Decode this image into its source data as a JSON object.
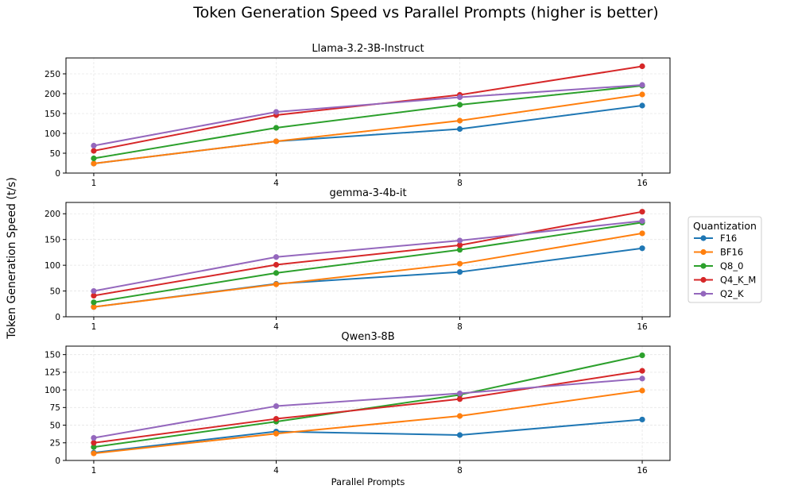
{
  "figure": {
    "title": "Token Generation Speed vs Parallel Prompts (higher is better)",
    "ylabel": "Token Generation Speed (t/s)"
  },
  "legend": {
    "title": "Quantization",
    "placement": "right"
  },
  "colors": {
    "F16": "#1f77b4",
    "BF16": "#ff7f0e",
    "Q8_0": "#2ca02c",
    "Q4_K_M": "#d62728",
    "Q2_K": "#9467bd"
  },
  "chart_data": [
    {
      "type": "line",
      "title": "Llama-3.2-3B-Instruct",
      "xlabel": "",
      "categories": [
        "1",
        "4",
        "8",
        "16"
      ],
      "ylim": [
        0,
        290
      ],
      "yticks": [
        0,
        50,
        100,
        150,
        200,
        250
      ],
      "grid": true,
      "series": [
        {
          "name": "F16",
          "values": [
            24,
            80,
            111,
            170
          ]
        },
        {
          "name": "BF16",
          "values": [
            24,
            80,
            132,
            198
          ]
        },
        {
          "name": "Q8_0",
          "values": [
            37,
            114,
            172,
            220
          ]
        },
        {
          "name": "Q4_K_M",
          "values": [
            56,
            146,
            197,
            269
          ]
        },
        {
          "name": "Q2_K",
          "values": [
            69,
            154,
            191,
            222
          ]
        }
      ]
    },
    {
      "type": "line",
      "title": "gemma-3-4b-it",
      "xlabel": "",
      "categories": [
        "1",
        "4",
        "8",
        "16"
      ],
      "ylim": [
        0,
        222
      ],
      "yticks": [
        0,
        50,
        100,
        150,
        200
      ],
      "grid": true,
      "series": [
        {
          "name": "F16",
          "values": [
            19,
            64,
            87,
            133
          ]
        },
        {
          "name": "BF16",
          "values": [
            19,
            63,
            103,
            162
          ]
        },
        {
          "name": "Q8_0",
          "values": [
            28,
            85,
            130,
            183
          ]
        },
        {
          "name": "Q4_K_M",
          "values": [
            41,
            101,
            139,
            204
          ]
        },
        {
          "name": "Q2_K",
          "values": [
            50,
            116,
            148,
            186
          ]
        }
      ]
    },
    {
      "type": "line",
      "title": "Qwen3-8B",
      "xlabel": "Parallel Prompts",
      "categories": [
        "1",
        "4",
        "8",
        "16"
      ],
      "ylim": [
        0,
        162
      ],
      "yticks": [
        0,
        25,
        50,
        75,
        100,
        125,
        150
      ],
      "grid": true,
      "series": [
        {
          "name": "F16",
          "values": [
            11,
            41,
            36,
            58
          ]
        },
        {
          "name": "BF16",
          "values": [
            10,
            38,
            63,
            99
          ]
        },
        {
          "name": "Q8_0",
          "values": [
            19,
            55,
            93,
            149
          ]
        },
        {
          "name": "Q4_K_M",
          "values": [
            25,
            59,
            87,
            127
          ]
        },
        {
          "name": "Q2_K",
          "values": [
            32,
            77,
            95,
            116
          ]
        }
      ]
    }
  ]
}
